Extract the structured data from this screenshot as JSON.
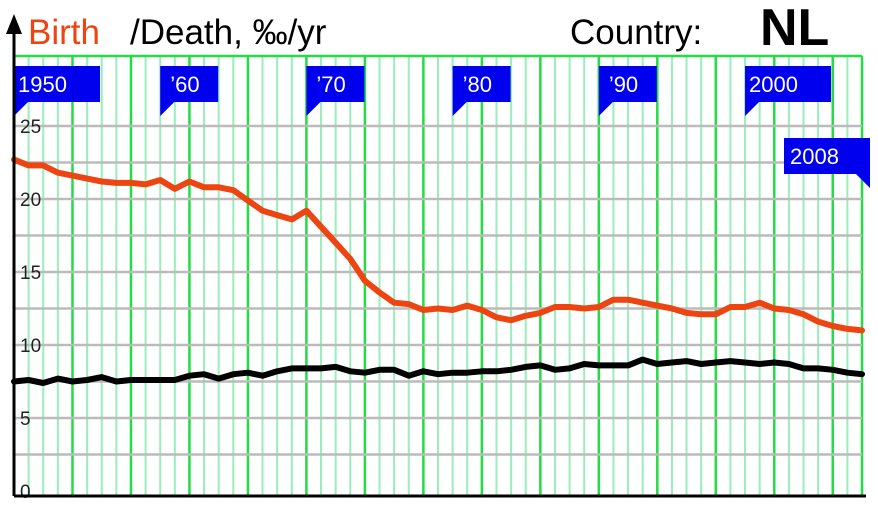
{
  "header": {
    "birth_label": "Birth",
    "death_label": "/Death, ‰/yr",
    "country_label": "Country:",
    "country_code": "NL"
  },
  "colors": {
    "birth": "#ee4411",
    "death": "#000000",
    "grid_minor": "#99eebb",
    "grid_major": "#22dd44",
    "grid_horizontal": "#bbbbbb",
    "marker_fill": "#0000ee",
    "marker_text": "#ffffff"
  },
  "chart_data": {
    "type": "line",
    "title": "",
    "xlabel": "",
    "ylabel": "‰/yr",
    "xlim": [
      1950,
      2008
    ],
    "ylim": [
      0,
      25
    ],
    "y_ticks": [
      0,
      5,
      10,
      15,
      20,
      25
    ],
    "grid": true,
    "decade_markers": [
      {
        "label": "1950",
        "year": 1950
      },
      {
        "label": "’60",
        "year": 1960
      },
      {
        "label": "’70",
        "year": 1970
      },
      {
        "label": "’80",
        "year": 1980
      },
      {
        "label": "’90",
        "year": 1990
      },
      {
        "label": "2000",
        "year": 2000
      }
    ],
    "end_marker": {
      "label": "2008",
      "year": 2008
    },
    "x": [
      1950,
      1951,
      1952,
      1953,
      1954,
      1955,
      1956,
      1957,
      1958,
      1959,
      1960,
      1961,
      1962,
      1963,
      1964,
      1965,
      1966,
      1967,
      1968,
      1969,
      1970,
      1971,
      1972,
      1973,
      1974,
      1975,
      1976,
      1977,
      1978,
      1979,
      1980,
      1981,
      1982,
      1983,
      1984,
      1985,
      1986,
      1987,
      1988,
      1989,
      1990,
      1991,
      1992,
      1993,
      1994,
      1995,
      1996,
      1997,
      1998,
      1999,
      2000,
      2001,
      2002,
      2003,
      2004,
      2005,
      2006,
      2007,
      2008
    ],
    "series": [
      {
        "name": "Birth",
        "values": [
          22.7,
          22.3,
          22.3,
          21.8,
          21.6,
          21.4,
          21.2,
          21.1,
          21.1,
          21.0,
          21.3,
          20.7,
          21.2,
          20.8,
          20.8,
          20.6,
          19.9,
          19.2,
          18.9,
          18.6,
          19.2,
          18.1,
          17.0,
          15.9,
          14.4,
          13.6,
          12.9,
          12.8,
          12.4,
          12.5,
          12.4,
          12.7,
          12.4,
          11.9,
          11.7,
          12.0,
          12.2,
          12.6,
          12.6,
          12.5,
          12.6,
          13.1,
          13.1,
          12.9,
          12.7,
          12.5,
          12.2,
          12.1,
          12.1,
          12.6,
          12.6,
          12.9,
          12.5,
          12.4,
          12.1,
          11.6,
          11.3,
          11.1,
          11.0
        ]
      },
      {
        "name": "Death",
        "values": [
          7.5,
          7.6,
          7.4,
          7.7,
          7.5,
          7.6,
          7.8,
          7.5,
          7.6,
          7.6,
          7.6,
          7.6,
          7.9,
          8.0,
          7.7,
          8.0,
          8.1,
          7.9,
          8.2,
          8.4,
          8.4,
          8.4,
          8.5,
          8.2,
          8.1,
          8.3,
          8.3,
          7.9,
          8.2,
          8.0,
          8.1,
          8.1,
          8.2,
          8.2,
          8.3,
          8.5,
          8.6,
          8.3,
          8.4,
          8.7,
          8.6,
          8.6,
          8.6,
          9.0,
          8.7,
          8.8,
          8.9,
          8.7,
          8.8,
          8.9,
          8.8,
          8.7,
          8.8,
          8.7,
          8.4,
          8.4,
          8.3,
          8.1,
          8.0
        ]
      }
    ]
  }
}
